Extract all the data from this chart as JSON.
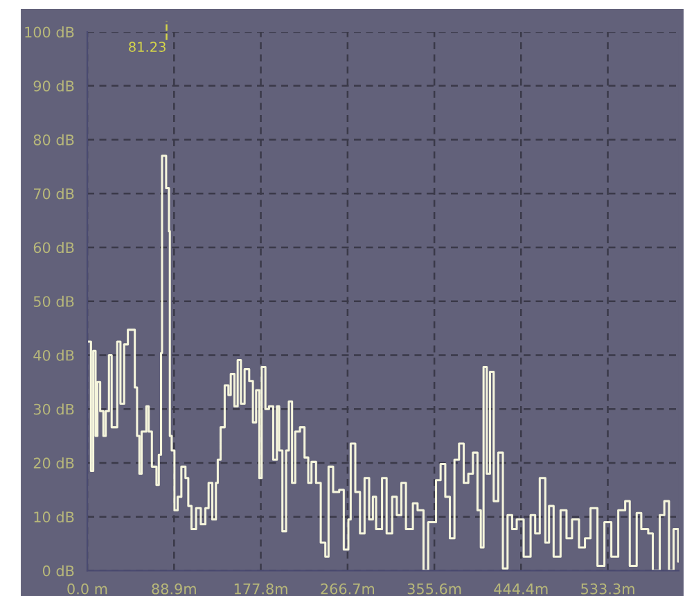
{
  "chart_data": {
    "type": "step",
    "xlim": [
      0,
      606
    ],
    "ylim": [
      0,
      100
    ],
    "xticks": [
      {
        "value": 0,
        "label": "0.0 m"
      },
      {
        "value": 88.9,
        "label": "88.9m"
      },
      {
        "value": 177.8,
        "label": "177.8m"
      },
      {
        "value": 266.7,
        "label": "266.7m"
      },
      {
        "value": 355.6,
        "label": "355.6m"
      },
      {
        "value": 444.4,
        "label": "444.4m"
      },
      {
        "value": 533.3,
        "label": "533.3m"
      }
    ],
    "yticks": [
      {
        "value": 0,
        "label": "0 dB"
      },
      {
        "value": 10,
        "label": "10 dB"
      },
      {
        "value": 20,
        "label": "20 dB"
      },
      {
        "value": 30,
        "label": "30 dB"
      },
      {
        "value": 40,
        "label": "40 dB"
      },
      {
        "value": 50,
        "label": "50 dB"
      },
      {
        "value": 60,
        "label": "60 dB"
      },
      {
        "value": 70,
        "label": "70 dB"
      },
      {
        "value": 80,
        "label": "80 dB"
      },
      {
        "value": 90,
        "label": "90 dB"
      },
      {
        "value": 100,
        "label": "100 dB"
      }
    ],
    "grid": true,
    "ref_lines": [
      {
        "axis": "x",
        "value": 81.23,
        "label": "81.23",
        "color": "#d4d44a",
        "line_style": "dashed"
      }
    ],
    "series": [
      {
        "color": "#f5f5dc",
        "x": [
          0,
          3.3,
          3.8,
          6.1,
          8.5,
          10.4,
          13.2,
          16.5,
          18.9,
          22.2,
          25,
          30.7,
          34,
          37.8,
          41.6,
          44.9,
          48.7,
          51,
          53.4,
          55.7,
          60.5,
          62.9,
          66.2,
          70.9,
          73.3,
          75.6,
          76.6,
          80.8,
          83.7,
          84.6,
          86.5,
          89.3,
          92.6,
          96.4,
          100.6,
          103.5,
          106.8,
          111.5,
          116.3,
          121,
          124.3,
          128.1,
          131.8,
          133.7,
          136.6,
          140.8,
          144.6,
          147,
          150.8,
          154.1,
          157.4,
          161.2,
          165.9,
          169.7,
          173,
          176.3,
          178.7,
          182.5,
          186.2,
          190.5,
          194.3,
          196.6,
          199.9,
          203.7,
          206.5,
          209.8,
          213.1,
          217.9,
          222.6,
          226.4,
          229.7,
          234.4,
          239.2,
          243.9,
          247.2,
          251.9,
          258.1,
          262.8,
          267.5,
          269.9,
          274.6,
          279.4,
          284.1,
          288.8,
          292.6,
          295.9,
          302,
          306.7,
          312.4,
          317.1,
          321.8,
          326.5,
          333.6,
          338.4,
          344.5,
          349.3,
          357.3,
          362,
          366.8,
          371.5,
          376.2,
          380.9,
          385.7,
          390.4,
          395.1,
          399.8,
          403.2,
          406,
          409.3,
          412.6,
          416.4,
          421.1,
          425.8,
          430.6,
          435.3,
          440,
          447.1,
          454.2,
          458.9,
          463.6,
          469.3,
          473.1,
          477.8,
          484.9,
          491,
          496.7,
          503.8,
          509.9,
          515.6,
          522.7,
          529.8,
          536.9,
          544,
          551.1,
          555.8,
          562.9,
          567.6,
          574.7,
          579.4,
          586.5,
          591.2,
          596,
          600.7,
          605.4
        ],
        "values": [
          42.5,
          42.5,
          18.5,
          40.8,
          25,
          35,
          29.6,
          25,
          29.6,
          40,
          26.6,
          42.5,
          31,
          42,
          44.7,
          44.7,
          34,
          25,
          18,
          25.8,
          30.5,
          25.8,
          19.3,
          15.9,
          21.5,
          40.4,
          77,
          71,
          63,
          25,
          22.3,
          11.2,
          13.7,
          19.3,
          17.2,
          12,
          7.7,
          11.6,
          8.6,
          11.6,
          16.3,
          9.5,
          16.3,
          20.6,
          26.6,
          34.4,
          32.6,
          36.5,
          30.5,
          39.1,
          31,
          37.4,
          35.2,
          27.5,
          33.5,
          17.2,
          37.8,
          30,
          30.5,
          20.6,
          30.5,
          22.3,
          7.3,
          22.3,
          31.4,
          16.3,
          25.8,
          26.6,
          21,
          16.3,
          20.2,
          16.3,
          5.2,
          2.6,
          19.3,
          14.6,
          15,
          3.9,
          9.5,
          23.6,
          14.6,
          6.9,
          17.2,
          9.5,
          13.7,
          7.7,
          17.2,
          6.9,
          13.7,
          10.3,
          16.3,
          7.7,
          12.5,
          11.2,
          0,
          9,
          16.8,
          19.8,
          13.7,
          6,
          20.6,
          23.6,
          16.3,
          18,
          21.9,
          11.2,
          4.3,
          37.8,
          18,
          36.9,
          12.9,
          21.9,
          0.4,
          10.3,
          7.7,
          9.5,
          2.6,
          10.3,
          6.9,
          17.2,
          5.2,
          12,
          2.6,
          11.2,
          6,
          9.5,
          4.3,
          6,
          11.6,
          0.9,
          9,
          2.6,
          11.2,
          12.9,
          0.9,
          10.7,
          7.7,
          6.9,
          0,
          10.3,
          12.9,
          0,
          7.7,
          1.7
        ]
      }
    ]
  }
}
